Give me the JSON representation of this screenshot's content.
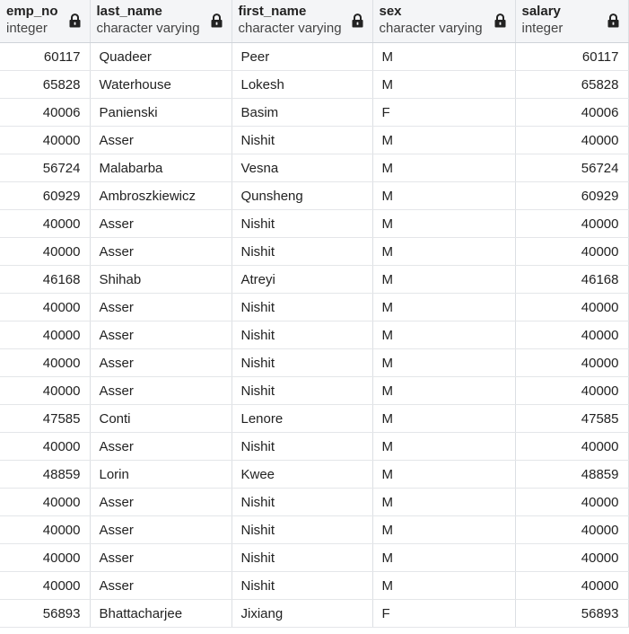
{
  "columns": [
    {
      "name": "emp_no",
      "type": "integer",
      "locked": true
    },
    {
      "name": "last_name",
      "type": "character varying",
      "locked": true
    },
    {
      "name": "first_name",
      "type": "character varying",
      "locked": true
    },
    {
      "name": "sex",
      "type": "character varying",
      "locked": true
    },
    {
      "name": "salary",
      "type": "integer",
      "locked": true
    }
  ],
  "rows": [
    [
      "60117",
      "Quadeer",
      "Peer",
      "M",
      "60117"
    ],
    [
      "65828",
      "Waterhouse",
      "Lokesh",
      "M",
      "65828"
    ],
    [
      "40006",
      "Panienski",
      "Basim",
      "F",
      "40006"
    ],
    [
      "40000",
      "Asser",
      "Nishit",
      "M",
      "40000"
    ],
    [
      "56724",
      "Malabarba",
      "Vesna",
      "M",
      "56724"
    ],
    [
      "60929",
      "Ambroszkiewicz",
      "Qunsheng",
      "M",
      "60929"
    ],
    [
      "40000",
      "Asser",
      "Nishit",
      "M",
      "40000"
    ],
    [
      "40000",
      "Asser",
      "Nishit",
      "M",
      "40000"
    ],
    [
      "46168",
      "Shihab",
      "Atreyi",
      "M",
      "46168"
    ],
    [
      "40000",
      "Asser",
      "Nishit",
      "M",
      "40000"
    ],
    [
      "40000",
      "Asser",
      "Nishit",
      "M",
      "40000"
    ],
    [
      "40000",
      "Asser",
      "Nishit",
      "M",
      "40000"
    ],
    [
      "40000",
      "Asser",
      "Nishit",
      "M",
      "40000"
    ],
    [
      "47585",
      "Conti",
      "Lenore",
      "M",
      "47585"
    ],
    [
      "40000",
      "Asser",
      "Nishit",
      "M",
      "40000"
    ],
    [
      "48859",
      "Lorin",
      "Kwee",
      "M",
      "48859"
    ],
    [
      "40000",
      "Asser",
      "Nishit",
      "M",
      "40000"
    ],
    [
      "40000",
      "Asser",
      "Nishit",
      "M",
      "40000"
    ],
    [
      "40000",
      "Asser",
      "Nishit",
      "M",
      "40000"
    ],
    [
      "40000",
      "Asser",
      "Nishit",
      "M",
      "40000"
    ],
    [
      "56893",
      "Bhattacharjee",
      "Jixiang",
      "F",
      "56893"
    ]
  ]
}
